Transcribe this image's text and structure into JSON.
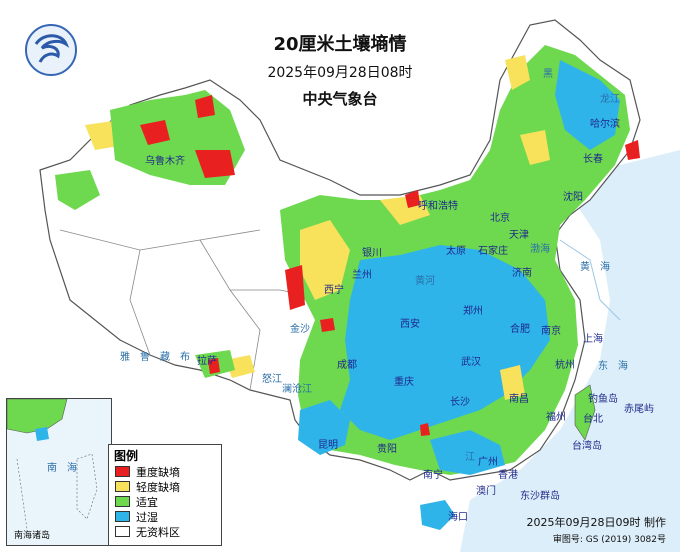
{
  "header": {
    "title": "20厘米土壤墒情",
    "datetime": "2025年09月28日08时",
    "agency": "中央气象台"
  },
  "legend": {
    "title": "图例",
    "items": [
      {
        "label": "重度缺墒",
        "color": "#e8201f"
      },
      {
        "label": "轻度缺墒",
        "color": "#f8e25c"
      },
      {
        "label": "适宜",
        "color": "#6ed84f"
      },
      {
        "label": "过湿",
        "color": "#2fb4e9"
      },
      {
        "label": "无资料区",
        "color": "#ffffff"
      }
    ]
  },
  "inset": {
    "label": "南海诸岛",
    "sea_label": "南　海"
  },
  "footer": {
    "made": "2025年09月28日09时 制作",
    "approval": "审图号: GS (2019) 3082号"
  },
  "places": {
    "urumqi": "乌鲁木齐",
    "lhasa": "拉萨",
    "xining": "西宁",
    "lanzhou": "兰州",
    "yinchuan": "银川",
    "hohhot": "呼和浩特",
    "beijing": "北京",
    "tianjin": "天津",
    "shijiazhuang": "石家庄",
    "taiyuan": "太原",
    "jinan": "济南",
    "zhengzhou": "郑州",
    "xian": "西安",
    "chengdu": "成都",
    "chongqing": "重庆",
    "wuhan": "武汉",
    "hefei": "合肥",
    "nanjing": "南京",
    "shanghai": "上海",
    "hangzhou": "杭州",
    "changsha": "长沙",
    "nanchang": "南昌",
    "fuzhou": "福州",
    "guiyang": "贵阳",
    "kunming": "昆明",
    "nanning": "南宁",
    "guangzhou": "广州",
    "hongkong": "香港",
    "macau": "澳门",
    "haikou": "海口",
    "taibei": "台北",
    "shenyang": "沈阳",
    "changchun": "长春",
    "harbin": "哈尔滨",
    "taiwan": "台湾岛",
    "diaoyu": "钓鱼岛",
    "chiwei": "赤尾屿",
    "dongsha": "东沙群岛",
    "yellow_sea": "黄　海",
    "east_sea": "东　海",
    "bohai": "渤海",
    "yarlung": "雅　鲁　藏　布",
    "nujiang": "怒江",
    "lancang": "澜沧江",
    "jinsha": "金沙",
    "jiang": "江",
    "huanghe": "黄河",
    "hei": "黑",
    "longjiang": "龙江"
  },
  "colors": {
    "sea": "#cfe6f6",
    "nodata": "#ffffff",
    "border": "#666666"
  }
}
